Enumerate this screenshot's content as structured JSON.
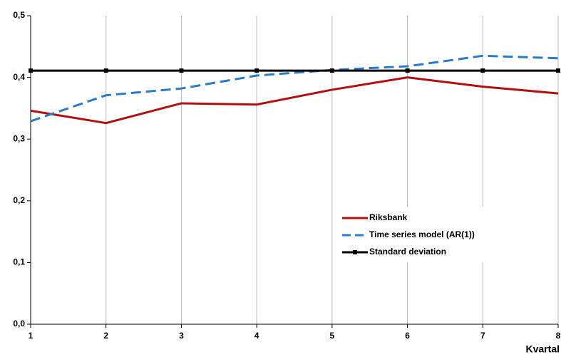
{
  "chart_data": {
    "type": "line",
    "x": [
      1,
      2,
      3,
      4,
      5,
      6,
      7,
      8
    ],
    "x_label": "Kvartal",
    "series": [
      {
        "name": "Riksbank",
        "color": "#b01010",
        "dash": "solid",
        "marker": false,
        "values": [
          0.346,
          0.326,
          0.358,
          0.356,
          0.38,
          0.4,
          0.385,
          0.374
        ]
      },
      {
        "name": "Time series model (AR(1))",
        "color": "#2a7bc8",
        "dash": "dashed",
        "marker": false,
        "values": [
          0.329,
          0.371,
          0.382,
          0.403,
          0.412,
          0.418,
          0.435,
          0.431
        ]
      },
      {
        "name": "Standard deviation",
        "color": "#000000",
        "dash": "solid",
        "marker": true,
        "values": [
          0.411,
          0.411,
          0.411,
          0.411,
          0.411,
          0.411,
          0.411,
          0.411
        ]
      }
    ],
    "xlim": [
      1,
      8
    ],
    "xticks": [
      1,
      2,
      3,
      4,
      5,
      6,
      7,
      8
    ],
    "ylim": [
      0,
      0.5
    ],
    "yticks": [
      {
        "value": 0,
        "label": "0,0"
      },
      {
        "value": 0.1,
        "label": "0,1"
      },
      {
        "value": 0.2,
        "label": "0,2"
      },
      {
        "value": 0.3,
        "label": "0,3"
      },
      {
        "value": 0.4,
        "label": "0,4"
      },
      {
        "value": 0.5,
        "label": "0,5"
      }
    ],
    "grid": "x",
    "legend_position": "lower right"
  }
}
